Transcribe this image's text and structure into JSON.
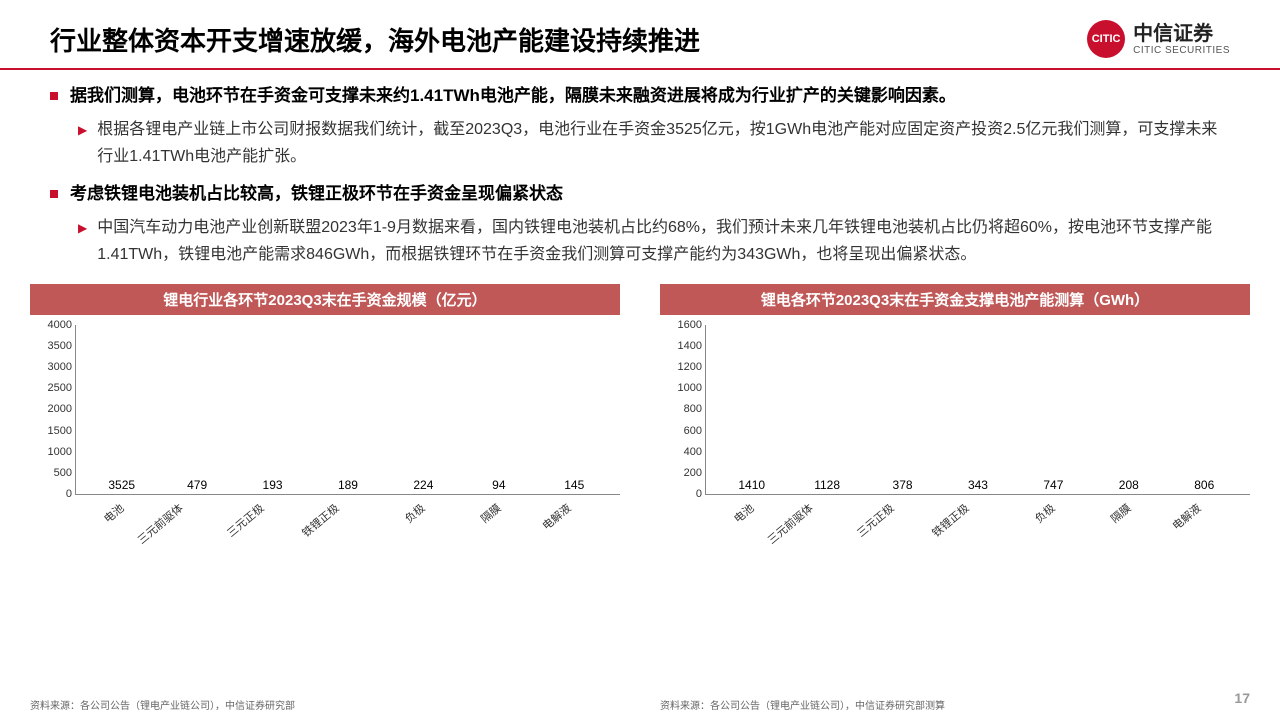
{
  "header": {
    "title": "行业整体资本开支增速放缓，海外电池产能建设持续推进",
    "logo_cn": "中信证券",
    "logo_en": "CITIC SECURITIES",
    "logo_badge": "CITIC"
  },
  "bullets": [
    {
      "main": "据我们测算，电池环节在手资金可支撑未来约1.41TWh电池产能，隔膜未来融资进展将成为行业扩产的关键影响因素。",
      "sub": "根据各锂电产业链上市公司财报数据我们统计，截至2023Q3，电池行业在手资金3525亿元，按1GWh电池产能对应固定资产投资2.5亿元我们测算，可支撑未来行业1.41TWh电池产能扩张。"
    },
    {
      "main": "考虑铁锂电池装机占比较高，铁锂正极环节在手资金呈现偏紧状态",
      "sub": "中国汽车动力电池产业创新联盟2023年1-9月数据来看，国内铁锂电池装机占比约68%，我们预计未来几年铁锂电池装机占比仍将超60%，按电池环节支撑产能1.41TWh，铁锂电池产能需求846GWh，而根据铁锂环节在手资金我们测算可支撑产能约为343GWh，也将呈现出偏紧状态。"
    }
  ],
  "chart1": {
    "title": "锂电行业各环节2023Q3末在手资金规模（亿元）",
    "categories": [
      "电池",
      "三元前驱体",
      "三元正极",
      "铁锂正极",
      "负极",
      "隔膜",
      "电解液"
    ],
    "values": [
      3525,
      479,
      193,
      189,
      224,
      94,
      145
    ],
    "ymax": 4000,
    "ystep": 500,
    "bar_color": "#e60012",
    "source": "资料来源：各公司公告（锂电产业链公司），中信证券研究部"
  },
  "chart2": {
    "title": "锂电各环节2023Q3末在手资金支撑电池产能测算（GWh）",
    "categories": [
      "电池",
      "三元前驱体",
      "三元正极",
      "铁锂正极",
      "负极",
      "隔膜",
      "电解液"
    ],
    "values": [
      1410,
      1128,
      378,
      343,
      747,
      208,
      806
    ],
    "ymax": 1600,
    "ystep": 200,
    "bar_color": "#e60012",
    "source": "资料来源：各公司公告（锂电产业链公司），中信证券研究部测算"
  },
  "page_number": "17"
}
